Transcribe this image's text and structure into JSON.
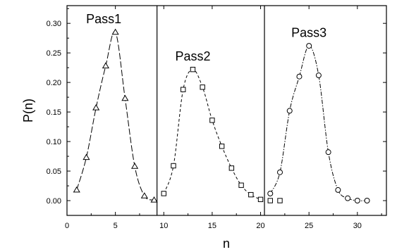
{
  "chart_data": {
    "type": "scatter",
    "title": "",
    "xlabel": "n",
    "ylabel": "P(n)",
    "xlim": [
      0,
      33
    ],
    "ylim": [
      -0.025,
      0.33
    ],
    "xticks": [
      "0",
      "5",
      "10",
      "15",
      "20",
      "25",
      "30"
    ],
    "yticks": [
      "0.00",
      "0.05",
      "0.10",
      "0.15",
      "0.20",
      "0.25",
      "0.30"
    ],
    "grid": false,
    "dividers_x": [
      9.3,
      20.4
    ],
    "series": [
      {
        "name": "Pass1",
        "marker": "triangle",
        "line": "long-dash",
        "x": [
          1,
          2,
          3,
          4,
          5,
          6,
          7,
          8,
          9
        ],
        "y": [
          0.018,
          0.073,
          0.157,
          0.228,
          0.285,
          0.173,
          0.058,
          0.008,
          0.001
        ]
      },
      {
        "name": "Pass2",
        "marker": "square",
        "line": "dash",
        "x": [
          10,
          11,
          12,
          13,
          14,
          15,
          16,
          17,
          18,
          19,
          20,
          21,
          22
        ],
        "y": [
          0.012,
          0.059,
          0.188,
          0.222,
          0.192,
          0.136,
          0.092,
          0.055,
          0.026,
          0.01,
          0.002,
          0.0,
          0.0
        ]
      },
      {
        "name": "Pass3",
        "marker": "circle",
        "line": "dash-dot",
        "x": [
          21,
          22,
          23,
          24,
          25,
          26,
          27,
          28,
          29,
          30,
          31
        ],
        "y": [
          0.012,
          0.048,
          0.152,
          0.21,
          0.262,
          0.212,
          0.082,
          0.018,
          0.004,
          0.0,
          0.0
        ]
      }
    ]
  }
}
